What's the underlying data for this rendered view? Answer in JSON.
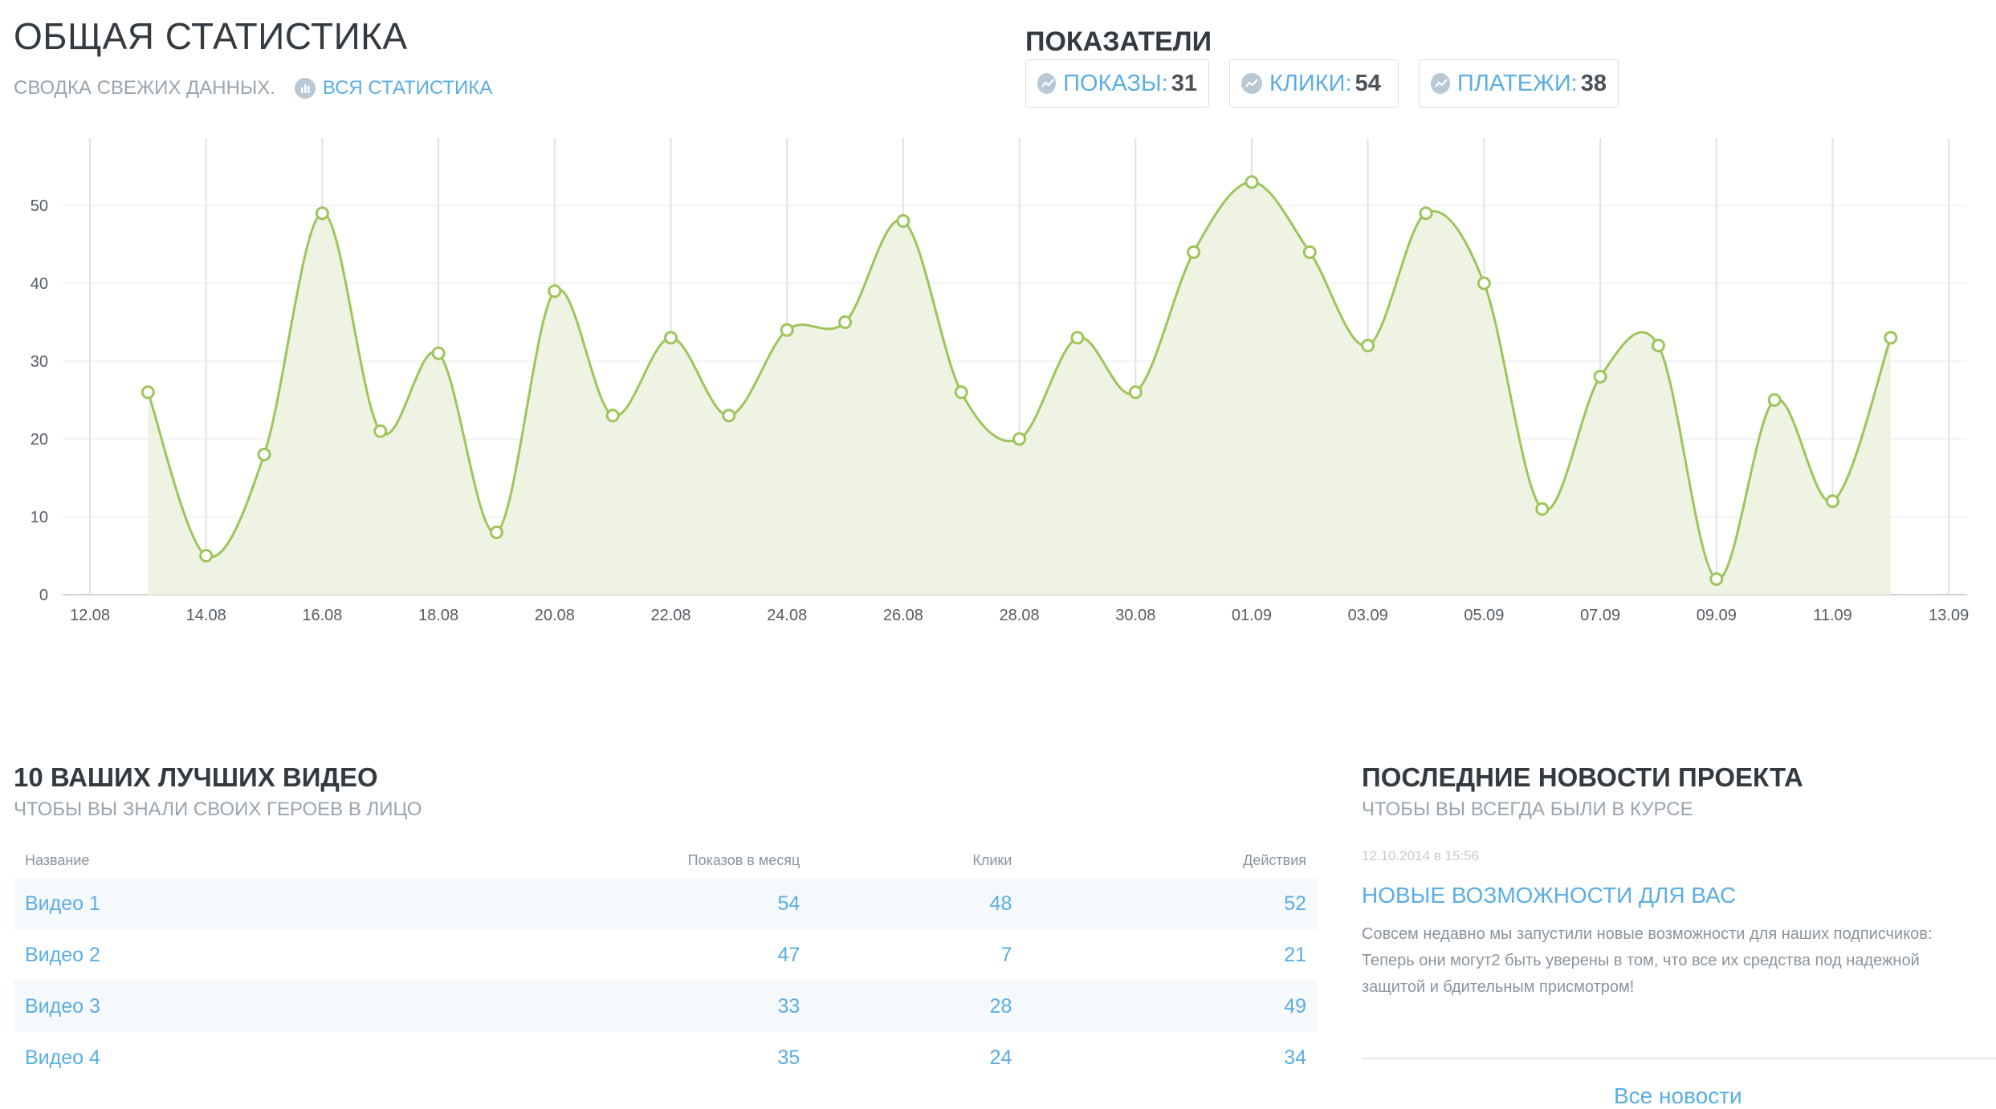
{
  "header": {
    "title": "ОБЩАЯ СТАТИСТИКА",
    "subtitle": "СВОДКА СВЕЖИХ ДАННЫХ.",
    "all_stats_link": "ВСЯ СТАТИСТИКА",
    "all_stats_icon": "bar-chart-icon"
  },
  "metrics": {
    "title": "ПОКАЗАТЕЛИ",
    "items": [
      {
        "label": "ПОКАЗЫ:",
        "value": "31",
        "icon": "trend-icon"
      },
      {
        "label": "КЛИКИ:",
        "value": "54",
        "icon": "trend-icon"
      },
      {
        "label": "ПЛАТЕЖИ:",
        "value": "38",
        "icon": "trend-icon"
      }
    ]
  },
  "chart_data": {
    "type": "area",
    "x_tick_labels": [
      "12.08",
      "14.08",
      "16.08",
      "18.08",
      "20.08",
      "22.08",
      "24.08",
      "26.08",
      "28.08",
      "30.08",
      "01.09",
      "03.09",
      "05.09",
      "07.09",
      "09.09",
      "11.09",
      "13.09"
    ],
    "y_ticks": [
      0,
      10,
      20,
      30,
      40,
      50
    ],
    "ylim": [
      0,
      58
    ],
    "x_dates": [
      "13.08",
      "14.08",
      "15.08",
      "16.08",
      "17.08",
      "18.08",
      "19.08",
      "20.08",
      "21.08",
      "22.08",
      "23.08",
      "24.08",
      "25.08",
      "26.08",
      "27.08",
      "28.08",
      "29.08",
      "30.08",
      "31.08",
      "01.09",
      "02.09",
      "03.09",
      "04.09",
      "05.09",
      "06.09",
      "07.09",
      "08.09",
      "09.09",
      "10.09",
      "11.09",
      "12.09"
    ],
    "values": [
      26,
      5,
      18,
      49,
      21,
      31,
      8,
      39,
      23,
      33,
      23,
      34,
      35,
      48,
      26,
      20,
      33,
      26,
      44,
      53,
      44,
      32,
      49,
      40,
      11,
      28,
      32,
      2,
      25,
      12,
      33
    ],
    "grid": true,
    "colors": {
      "line": "#9dc55a",
      "fill": "#edf2e1",
      "point_fill": "#ffffff",
      "grid": "#e0e3e6"
    }
  },
  "videos": {
    "title": "10 ВАШИХ ЛУЧШИХ ВИДЕО",
    "subtitle": "ЧТОБЫ ВЫ ЗНАЛИ СВОИХ ГЕРОЕВ В ЛИЦО",
    "columns": [
      "Название",
      "Показов в месяц",
      "Клики",
      "Действия"
    ],
    "rows": [
      {
        "name": "Видео 1",
        "views": "54",
        "clicks": "48",
        "actions": "52"
      },
      {
        "name": "Видео 2",
        "views": "47",
        "clicks": "7",
        "actions": "21"
      },
      {
        "name": "Видео 3",
        "views": "33",
        "clicks": "28",
        "actions": "49"
      },
      {
        "name": "Видео 4",
        "views": "35",
        "clicks": "24",
        "actions": "34"
      }
    ]
  },
  "news": {
    "title": "ПОСЛЕДНИЕ НОВОСТИ ПРОЕКТА",
    "subtitle": "ЧТОБЫ ВЫ ВСЕГДА БЫЛИ В КУРСЕ",
    "date": "12.10.2014 в 15:56",
    "headline": "НОВЫЕ ВОЗМОЖНОСТИ ДЛЯ ВАС",
    "body": "Совсем недавно мы запустили новые возможности для наших подписчиков: Теперь они могут2 быть уверены в том, что все их средства под надежной защитой и бдительным присмотром!",
    "all_news": "Все новости"
  },
  "colors": {
    "accent": "#5aaee3",
    "title": "#333a40",
    "muted": "#9aa4ad"
  }
}
